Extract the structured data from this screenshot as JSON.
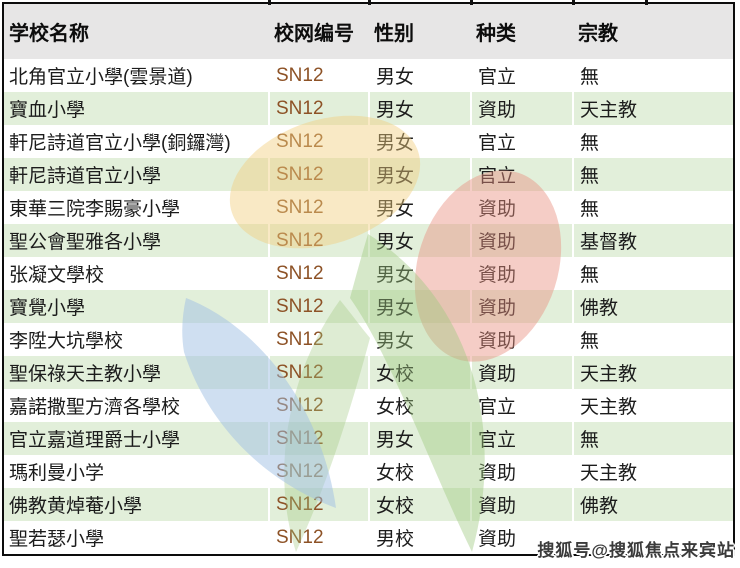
{
  "watermark": {
    "text": "搜狐号@搜狐焦点来宾站"
  },
  "colors": {
    "header_bg": "#E7E6E6",
    "row_alt_bg": "#E2EFDA",
    "row_bg": "#FFFFFF",
    "net_code_text": "#8D5226",
    "table_border": "#0C0C0C",
    "logo_yellow": "#F2CE7E",
    "logo_red": "#E89180",
    "logo_green": "#9DC87F",
    "logo_blue": "#9FC0E4"
  },
  "table": {
    "columns": [
      {
        "key": "name",
        "label": "学校名称"
      },
      {
        "key": "net",
        "label": "校网编号"
      },
      {
        "key": "gender",
        "label": "性别"
      },
      {
        "key": "kind",
        "label": "种类"
      },
      {
        "key": "religion",
        "label": "宗教"
      }
    ],
    "rows": [
      {
        "name": "北角官立小學(雲景道)",
        "net": "SN12",
        "gender": "男女",
        "kind": "官立",
        "religion": "無"
      },
      {
        "name": "寶血小學",
        "net": "SN12",
        "gender": "男女",
        "kind": "資助",
        "religion": "天主教"
      },
      {
        "name": "軒尼詩道官立小學(銅鑼灣)",
        "net": "SN12",
        "gender": "男女",
        "kind": "官立",
        "religion": "無"
      },
      {
        "name": "軒尼詩道官立小學",
        "net": "SN12",
        "gender": "男女",
        "kind": "官立",
        "religion": "無"
      },
      {
        "name": "東華三院李賜豪小學",
        "net": "SN12",
        "gender": "男女",
        "kind": "資助",
        "religion": "無"
      },
      {
        "name": "聖公會聖雅各小學",
        "net": "SN12",
        "gender": "男女",
        "kind": "資助",
        "religion": "基督教"
      },
      {
        "name": "张凝文學校",
        "net": "SN12",
        "gender": "男女",
        "kind": "資助",
        "religion": "無"
      },
      {
        "name": "寶覺小學",
        "net": "SN12",
        "gender": "男女",
        "kind": "資助",
        "religion": "佛教"
      },
      {
        "name": "李陞大坑學校",
        "net": "SN12",
        "gender": "男女",
        "kind": "資助",
        "religion": "無"
      },
      {
        "name": "聖保祿天主教小學",
        "net": "SN12",
        "gender": "女校",
        "kind": "資助",
        "religion": "天主教"
      },
      {
        "name": "嘉諾撒聖方濟各學校",
        "net": "SN12",
        "gender": "女校",
        "kind": "官立",
        "religion": "天主教"
      },
      {
        "name": "官立嘉道理爵士小學",
        "net": "SN12",
        "gender": "男女",
        "kind": "官立",
        "religion": "無"
      },
      {
        "name": "瑪利曼小学",
        "net": "SN12",
        "gender": "女校",
        "kind": "資助",
        "religion": "天主教"
      },
      {
        "name": "佛教黄焯菴小學",
        "net": "SN12",
        "gender": "女校",
        "kind": "資助",
        "religion": "佛教"
      },
      {
        "name": "聖若瑟小學",
        "net": "SN12",
        "gender": "男校",
        "kind": "資助",
        "religion": ""
      }
    ]
  }
}
